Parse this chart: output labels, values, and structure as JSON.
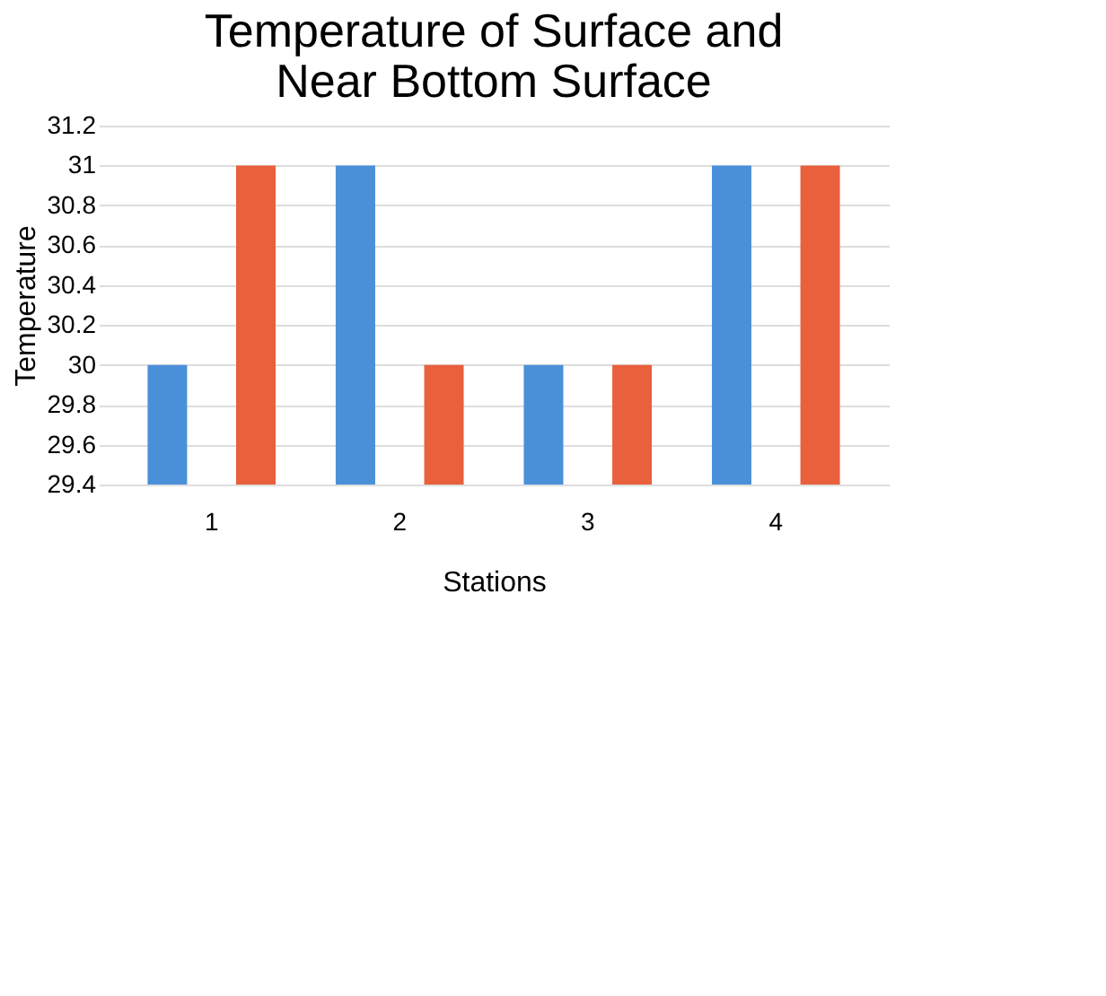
{
  "chart_data": {
    "type": "bar",
    "title": "Temperature of Surface and Near Bottom Surface",
    "xlabel": "Stations",
    "ylabel": "Temperature",
    "categories": [
      "1",
      "2",
      "3",
      "4"
    ],
    "series": [
      {
        "color": "#4a90d9",
        "values": [
          30,
          31,
          30,
          31
        ]
      },
      {
        "color": "#e8603c",
        "values": [
          31,
          30,
          30,
          31
        ]
      }
    ],
    "ylim": [
      29.4,
      31.2
    ],
    "yticks": [
      29.4,
      29.6,
      29.8,
      30,
      30.2,
      30.4,
      30.6,
      30.8,
      31,
      31.2
    ],
    "grid": "y"
  }
}
